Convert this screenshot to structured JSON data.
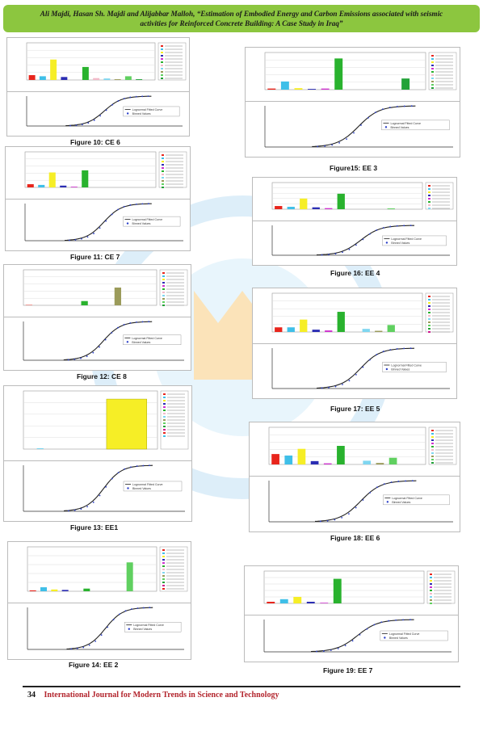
{
  "header": {
    "line1": "Ali Majdi, Hasan Sh. Majdi and Alijabbar Malloh, “Estimation of Embodied Energy and Carbon Emissions associated with seismic",
    "line2": "activities for Reinforced Concrete Building: A Case Study in Iraq”"
  },
  "footer": {
    "page_number": "34",
    "journal": "International Journal for Modern Trends in Science and Technology"
  },
  "colors": {
    "banner": "#8cc63f",
    "journal_text": "#b3262e",
    "bar_palette": [
      "#e8251c",
      "#3fbfe8",
      "#f6ee26",
      "#2b2db3",
      "#cf33cf",
      "#29b22e",
      "#f2b9c8",
      "#7fd6f0",
      "#9b9b5a",
      "#60d060",
      "#22a238",
      "#d01890"
    ]
  },
  "figures": [
    {
      "id": "ce6",
      "caption": "Figure 10: CE 6",
      "bars": [
        13,
        10,
        55,
        8,
        0,
        35,
        5,
        4,
        2,
        10,
        2,
        0
      ],
      "cdf_label": "",
      "lognormal": "Lognormal Fitted Curve",
      "binned": "Binned Values"
    },
    {
      "id": "ce7",
      "caption": "Figure 11: CE 7",
      "bars": [
        9,
        7,
        42,
        5,
        2,
        48,
        0,
        0,
        0,
        0,
        0,
        0
      ],
      "cdf_label": "",
      "lognormal": "Lognormal Fitted Curve",
      "binned": "Binned Values"
    },
    {
      "id": "ce8",
      "caption": "Figure 12: CE 8",
      "bars": [
        1,
        0,
        0,
        0,
        0,
        12,
        0,
        0,
        50,
        0,
        0,
        0
      ],
      "cdf_label": "",
      "lognormal": "Lognormal Fitted Curve",
      "binned": "Binned Values"
    },
    {
      "id": "ee1",
      "caption": "Figure 13: EE1",
      "bars": [
        0,
        1,
        0,
        0,
        0,
        0,
        0,
        0,
        0,
        0,
        0,
        0
      ],
      "single": {
        "color": "#f6ee26",
        "value": 86
      },
      "lognormal": "Lognormal Fitted Curve",
      "binned": "Binned Values"
    },
    {
      "id": "ee2",
      "caption": "Figure 14: EE 2",
      "bars": [
        2,
        9,
        4,
        3,
        0,
        6,
        0,
        0,
        0,
        65,
        0,
        0
      ],
      "lognormal": "Lognormal Fitted Curve",
      "binned": "Binned Values"
    },
    {
      "id": "ee3",
      "caption": "Figure15: EE 3",
      "bars": [
        3,
        22,
        4,
        2,
        3,
        84,
        0,
        0,
        0,
        0,
        30,
        0
      ],
      "lognormal": "Lognormal Fitted Curve",
      "binned": "Binned Values"
    },
    {
      "id": "ee4",
      "caption": "Figure 16: EE 4",
      "bars": [
        12,
        9,
        40,
        7,
        4,
        58,
        0,
        0,
        0,
        3,
        0,
        0
      ],
      "lognormal": "Lognormal Fitted Curve",
      "binned": "Binned Values"
    },
    {
      "id": "ee5",
      "caption": "Figure 17: EE 5",
      "bars": [
        12,
        12,
        32,
        6,
        4,
        52,
        0,
        8,
        3,
        18,
        0,
        0
      ],
      "lognormal": "Lognormal Fitted Curve",
      "binned": "Binned Values"
    },
    {
      "id": "ee6",
      "caption": "Figure 18: EE 6",
      "bars": [
        28,
        24,
        42,
        9,
        3,
        50,
        0,
        10,
        4,
        18,
        0,
        0
      ],
      "lognormal": "Lognormal Fitted Curve",
      "binned": "Binned Values"
    },
    {
      "id": "ee7",
      "caption": "Figure 19: EE 7",
      "bars": [
        5,
        13,
        20,
        5,
        2,
        76,
        0,
        0,
        0,
        0,
        0,
        0
      ],
      "lognormal": "Lognormal Fitted Curve",
      "binned": "Binned Values"
    }
  ]
}
